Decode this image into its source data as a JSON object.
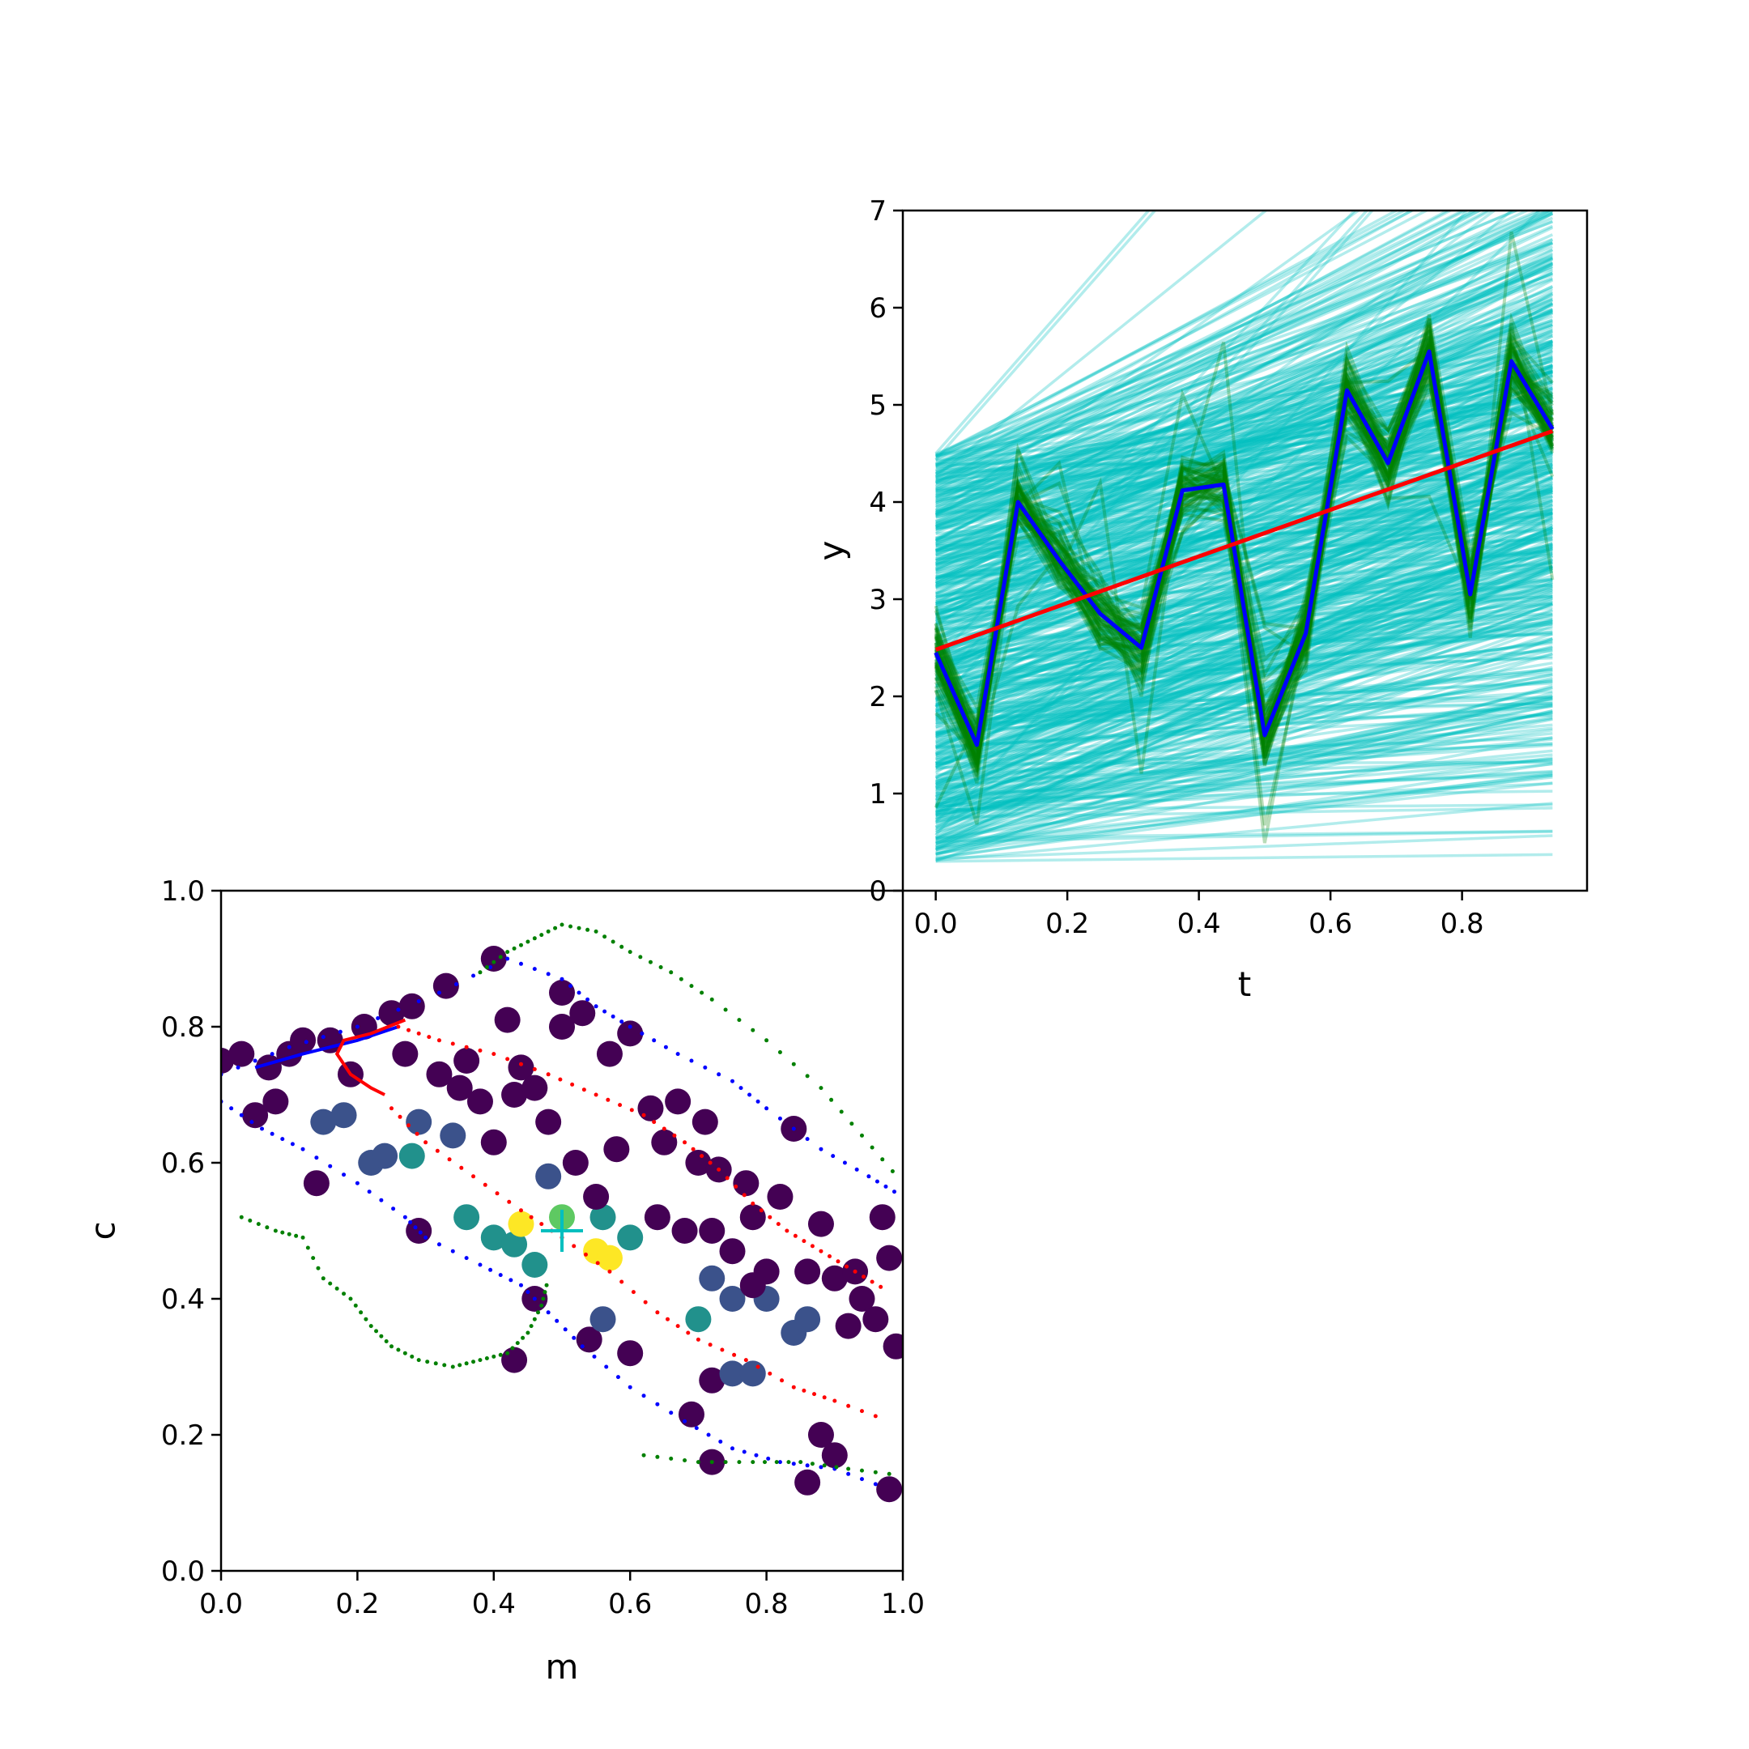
{
  "chart_data": [
    {
      "type": "line",
      "panel": "upper-right",
      "title": "",
      "xlabel": "t",
      "ylabel": "y",
      "xlim": [
        -0.05,
        0.99
      ],
      "ylim": [
        0,
        7
      ],
      "xticks": [
        "0.0",
        "0.2",
        "0.4",
        "0.6",
        "0.8"
      ],
      "yticks": [
        "0",
        "1",
        "2",
        "3",
        "4",
        "5",
        "6",
        "7"
      ],
      "grid": false,
      "legend": "none",
      "x": [
        0.0,
        0.0625,
        0.125,
        0.1875,
        0.25,
        0.3125,
        0.375,
        0.4375,
        0.5,
        0.5625,
        0.625,
        0.6875,
        0.75,
        0.8125,
        0.875,
        0.9375
      ],
      "series": [
        {
          "color": "#0000ff",
          "values": [
            2.45,
            1.5,
            4.0,
            3.4,
            2.85,
            2.5,
            4.12,
            4.18,
            1.6,
            2.65,
            5.15,
            4.4,
            5.55,
            3.05,
            5.45,
            4.75
          ]
        },
        {
          "color": "#ff0000",
          "values": [
            2.48,
            2.63,
            2.78,
            2.93,
            3.08,
            3.23,
            3.38,
            3.53,
            3.68,
            3.83,
            3.98,
            4.13,
            4.28,
            4.43,
            4.58,
            4.73
          ]
        }
      ],
      "background_lines": {
        "cyan_color": "#00bfbf",
        "cyan_count": 600,
        "cyan_intercept_range": [
          0.3,
          4.5
        ],
        "cyan_slope_range": [
          0.0,
          5.0
        ],
        "green_color": "#008000",
        "green_count": 60,
        "green_spread": 0.35
      }
    },
    {
      "type": "scatter",
      "panel": "lower-left",
      "title": "",
      "xlabel": "m",
      "ylabel": "c",
      "xlim": [
        0,
        1
      ],
      "ylim": [
        0,
        1
      ],
      "xticks": [
        "0.0",
        "0.2",
        "0.4",
        "0.6",
        "0.8",
        "1.0"
      ],
      "yticks": [
        "0.0",
        "0.2",
        "0.4",
        "0.6",
        "0.8",
        "1.0"
      ],
      "grid": false,
      "legend": "none",
      "marker": {
        "x": 0.5,
        "y": 0.5,
        "color": "#00bfbf"
      },
      "colormap": [
        "#440154",
        "#3b528b",
        "#21918c",
        "#5ec962",
        "#fde725"
      ],
      "points": [
        [
          0.0,
          0.75,
          0
        ],
        [
          0.03,
          0.76,
          0
        ],
        [
          0.05,
          0.67,
          0
        ],
        [
          0.07,
          0.74,
          0
        ],
        [
          0.08,
          0.69,
          0
        ],
        [
          0.1,
          0.76,
          0
        ],
        [
          0.12,
          0.78,
          0
        ],
        [
          0.14,
          0.57,
          0
        ],
        [
          0.16,
          0.78,
          0
        ],
        [
          0.19,
          0.73,
          0
        ],
        [
          0.21,
          0.8,
          0
        ],
        [
          0.25,
          0.82,
          0
        ],
        [
          0.27,
          0.76,
          0
        ],
        [
          0.28,
          0.83,
          0
        ],
        [
          0.32,
          0.73,
          0
        ],
        [
          0.33,
          0.86,
          0
        ],
        [
          0.35,
          0.71,
          0
        ],
        [
          0.36,
          0.75,
          0
        ],
        [
          0.38,
          0.69,
          0
        ],
        [
          0.4,
          0.9,
          0
        ],
        [
          0.4,
          0.63,
          0.1
        ],
        [
          0.42,
          0.81,
          0
        ],
        [
          0.43,
          0.7,
          0
        ],
        [
          0.44,
          0.74,
          0
        ],
        [
          0.46,
          0.71,
          0
        ],
        [
          0.48,
          0.66,
          0
        ],
        [
          0.5,
          0.85,
          0
        ],
        [
          0.5,
          0.8,
          0
        ],
        [
          0.53,
          0.82,
          0
        ],
        [
          0.52,
          0.6,
          0.1
        ],
        [
          0.57,
          0.76,
          0
        ],
        [
          0.58,
          0.62,
          0
        ],
        [
          0.6,
          0.79,
          0
        ],
        [
          0.63,
          0.68,
          0
        ],
        [
          0.64,
          0.52,
          0.1
        ],
        [
          0.65,
          0.63,
          0
        ],
        [
          0.67,
          0.69,
          0
        ],
        [
          0.7,
          0.6,
          0
        ],
        [
          0.71,
          0.66,
          0
        ],
        [
          0.72,
          0.5,
          0.1
        ],
        [
          0.73,
          0.59,
          0
        ],
        [
          0.75,
          0.47,
          0
        ],
        [
          0.77,
          0.57,
          0
        ],
        [
          0.78,
          0.52,
          0
        ],
        [
          0.8,
          0.44,
          0
        ],
        [
          0.82,
          0.55,
          0
        ],
        [
          0.84,
          0.65,
          0
        ],
        [
          0.86,
          0.44,
          0
        ],
        [
          0.88,
          0.51,
          0
        ],
        [
          0.9,
          0.43,
          0
        ],
        [
          0.92,
          0.36,
          0
        ],
        [
          0.94,
          0.4,
          0
        ],
        [
          0.96,
          0.37,
          0
        ],
        [
          0.97,
          0.52,
          0
        ],
        [
          0.98,
          0.46,
          0
        ],
        [
          0.99,
          0.33,
          0
        ],
        [
          0.86,
          0.13,
          0
        ],
        [
          0.88,
          0.2,
          0
        ],
        [
          0.9,
          0.17,
          0
        ],
        [
          0.98,
          0.12,
          0
        ],
        [
          0.69,
          0.23,
          0
        ],
        [
          0.72,
          0.16,
          0
        ],
        [
          0.72,
          0.28,
          0.1
        ],
        [
          0.75,
          0.29,
          0.15
        ],
        [
          0.78,
          0.29,
          0.15
        ],
        [
          0.54,
          0.34,
          0.1
        ],
        [
          0.56,
          0.37,
          0.2
        ],
        [
          0.6,
          0.32,
          0.1
        ],
        [
          0.43,
          0.31,
          0
        ],
        [
          0.46,
          0.4,
          0.05
        ],
        [
          0.18,
          0.67,
          0.15
        ],
        [
          0.15,
          0.66,
          0.15
        ],
        [
          0.22,
          0.6,
          0.25
        ],
        [
          0.24,
          0.61,
          0.25
        ],
        [
          0.28,
          0.61,
          0.4
        ],
        [
          0.29,
          0.66,
          0.2
        ],
        [
          0.34,
          0.64,
          0.25
        ],
        [
          0.29,
          0.5,
          0.1
        ],
        [
          0.48,
          0.58,
          0.25
        ],
        [
          0.56,
          0.52,
          0.4
        ],
        [
          0.55,
          0.55,
          0.1
        ],
        [
          0.36,
          0.52,
          0.5
        ],
        [
          0.4,
          0.49,
          0.5
        ],
        [
          0.43,
          0.48,
          0.5
        ],
        [
          0.46,
          0.45,
          0.5
        ],
        [
          0.44,
          0.51,
          0.9
        ],
        [
          0.5,
          0.52,
          0.85
        ],
        [
          0.55,
          0.47,
          1.0
        ],
        [
          0.57,
          0.46,
          1.0
        ],
        [
          0.6,
          0.49,
          0.5
        ],
        [
          0.7,
          0.37,
          0.55
        ],
        [
          0.72,
          0.43,
          0.35
        ],
        [
          0.75,
          0.4,
          0.3
        ],
        [
          0.8,
          0.4,
          0.15
        ],
        [
          0.84,
          0.35,
          0.15
        ],
        [
          0.86,
          0.37,
          0.15
        ],
        [
          0.68,
          0.5,
          0.1
        ],
        [
          0.78,
          0.42,
          0.05
        ],
        [
          0.93,
          0.44,
          0
        ]
      ],
      "traces": [
        {
          "color": "#0000ff",
          "style": "dots",
          "points": [
            [
              0.0,
              0.73
            ],
            [
              0.1,
              0.77
            ],
            [
              0.2,
              0.8
            ],
            [
              0.32,
              0.85
            ],
            [
              0.42,
              0.9
            ],
            [
              0.5,
              0.87
            ],
            [
              0.55,
              0.83
            ],
            [
              0.6,
              0.8
            ],
            [
              0.67,
              0.76
            ],
            [
              0.75,
              0.72
            ],
            [
              0.8,
              0.68
            ],
            [
              0.88,
              0.62
            ],
            [
              0.95,
              0.58
            ],
            [
              1.0,
              0.55
            ]
          ]
        },
        {
          "color": "#0000ff",
          "style": "dots",
          "points": [
            [
              0.0,
              0.69
            ],
            [
              0.06,
              0.65
            ],
            [
              0.12,
              0.62
            ],
            [
              0.2,
              0.57
            ],
            [
              0.27,
              0.52
            ],
            [
              0.3,
              0.49
            ],
            [
              0.38,
              0.45
            ],
            [
              0.44,
              0.42
            ],
            [
              0.48,
              0.38
            ],
            [
              0.53,
              0.33
            ],
            [
              0.6,
              0.27
            ],
            [
              0.68,
              0.22
            ],
            [
              0.75,
              0.18
            ],
            [
              0.82,
              0.16
            ],
            [
              0.9,
              0.15
            ],
            [
              0.98,
              0.12
            ]
          ]
        },
        {
          "color": "#0000ff",
          "style": "line",
          "points": [
            [
              0.05,
              0.74
            ],
            [
              0.12,
              0.76
            ],
            [
              0.2,
              0.78
            ],
            [
              0.26,
              0.8
            ]
          ]
        },
        {
          "color": "#ff0000",
          "style": "line",
          "points": [
            [
              0.27,
              0.81
            ],
            [
              0.22,
              0.79
            ],
            [
              0.18,
              0.78
            ],
            [
              0.17,
              0.76
            ],
            [
              0.19,
              0.73
            ],
            [
              0.22,
              0.71
            ],
            [
              0.24,
              0.7
            ]
          ]
        },
        {
          "color": "#ff0000",
          "style": "dots",
          "points": [
            [
              0.26,
              0.8
            ],
            [
              0.32,
              0.78
            ],
            [
              0.4,
              0.76
            ],
            [
              0.48,
              0.73
            ],
            [
              0.55,
              0.7
            ],
            [
              0.62,
              0.67
            ],
            [
              0.68,
              0.63
            ],
            [
              0.73,
              0.59
            ],
            [
              0.78,
              0.54
            ],
            [
              0.83,
              0.5
            ],
            [
              0.88,
              0.47
            ],
            [
              0.93,
              0.44
            ],
            [
              0.98,
              0.41
            ]
          ]
        },
        {
          "color": "#ff0000",
          "style": "dots",
          "points": [
            [
              0.25,
              0.68
            ],
            [
              0.3,
              0.63
            ],
            [
              0.37,
              0.58
            ],
            [
              0.44,
              0.53
            ],
            [
              0.5,
              0.49
            ],
            [
              0.57,
              0.44
            ],
            [
              0.64,
              0.38
            ],
            [
              0.7,
              0.34
            ],
            [
              0.77,
              0.31
            ],
            [
              0.84,
              0.27
            ],
            [
              0.9,
              0.25
            ],
            [
              0.98,
              0.22
            ]
          ]
        },
        {
          "color": "#008000",
          "style": "dots",
          "points": [
            [
              0.03,
              0.52
            ],
            [
              0.08,
              0.5
            ],
            [
              0.12,
              0.49
            ],
            [
              0.15,
              0.43
            ],
            [
              0.19,
              0.4
            ],
            [
              0.22,
              0.36
            ],
            [
              0.25,
              0.33
            ],
            [
              0.29,
              0.31
            ],
            [
              0.34,
              0.3
            ],
            [
              0.38,
              0.31
            ],
            [
              0.42,
              0.32
            ],
            [
              0.45,
              0.35
            ],
            [
              0.47,
              0.39
            ],
            [
              0.48,
              0.43
            ]
          ]
        },
        {
          "color": "#008000",
          "style": "dots",
          "points": [
            [
              0.38,
              0.88
            ],
            [
              0.42,
              0.91
            ],
            [
              0.46,
              0.93
            ],
            [
              0.5,
              0.95
            ],
            [
              0.55,
              0.94
            ],
            [
              0.6,
              0.91
            ],
            [
              0.66,
              0.88
            ],
            [
              0.72,
              0.84
            ],
            [
              0.8,
              0.78
            ],
            [
              0.88,
              0.71
            ],
            [
              0.94,
              0.64
            ],
            [
              1.0,
              0.57
            ]
          ]
        },
        {
          "color": "#008000",
          "style": "dots",
          "points": [
            [
              0.62,
              0.17
            ],
            [
              0.7,
              0.16
            ],
            [
              0.78,
              0.16
            ],
            [
              0.85,
              0.16
            ],
            [
              0.92,
              0.15
            ],
            [
              1.0,
              0.14
            ]
          ]
        }
      ]
    }
  ]
}
